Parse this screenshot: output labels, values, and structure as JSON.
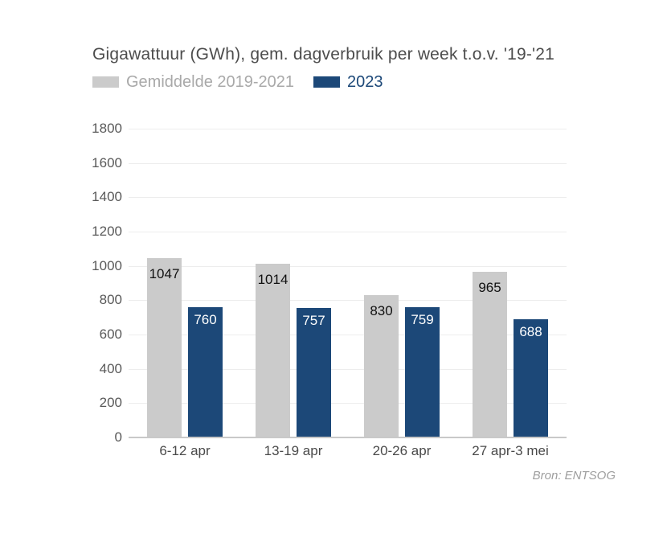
{
  "chart_data": {
    "type": "bar",
    "title": "Gigawattuur (GWh), gem. dagverbruik per week t.o.v. '19-'21",
    "categories": [
      "6-12 apr",
      "13-19 apr",
      "20-26 apr",
      "27 apr-3 mei"
    ],
    "series": [
      {
        "name": "Gemiddelde 2019-2021",
        "values": [
          1047,
          1014,
          830,
          965
        ],
        "color": "#cbcbcb",
        "label_color": "#111111"
      },
      {
        "name": "2023",
        "values": [
          760,
          757,
          759,
          688
        ],
        "color": "#1c4878",
        "label_color": "#ffffff"
      }
    ],
    "xlabel": "",
    "ylabel": "",
    "ylim": [
      0,
      1800
    ],
    "ytick_step": 200,
    "yticks": [
      0,
      200,
      400,
      600,
      800,
      1000,
      1200,
      1400,
      1600,
      1800
    ],
    "grid": true,
    "legend_position": "top-left",
    "source": "Bron: ENTSOG"
  },
  "colors": {
    "background": "#ffffff",
    "title_text": "#4d4d4d",
    "legend_average_text": "#a9a9a9",
    "legend_2023_text": "#1c4878",
    "axis_tick_text": "#595959",
    "category_text": "#4a4a4a",
    "gridline": "#ededed",
    "baseline": "#c9c9c9",
    "source_text": "#9e9e9e"
  }
}
